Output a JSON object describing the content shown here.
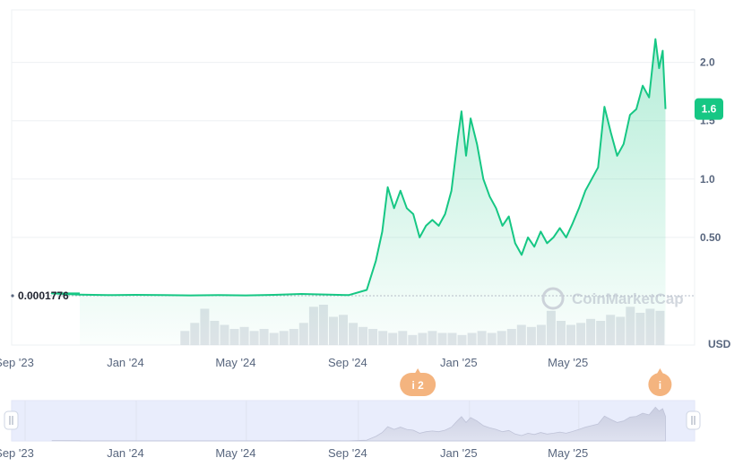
{
  "chart_data": {
    "type": "area",
    "ylim": [
      0,
      2.45
    ],
    "baseline": {
      "value": 0.0001776,
      "label": "0.0001776"
    },
    "yticks": [
      {
        "value": 0.5,
        "label": "0.50"
      },
      {
        "value": 1.0,
        "label": "1.0"
      },
      {
        "value": 1.5,
        "label": "1.5"
      },
      {
        "value": 2.0,
        "label": "2.0"
      }
    ],
    "current_price": {
      "value": 1.6,
      "label": "1.6"
    },
    "currency_label": "USD",
    "x_domain": [
      "2023-09-01",
      "2025-09-20"
    ],
    "xticks": [
      {
        "date": "2023-09-01",
        "label": "Sep '23"
      },
      {
        "date": "2024-01-01",
        "label": "Jan '24"
      },
      {
        "date": "2024-05-01",
        "label": "May '24"
      },
      {
        "date": "2024-09-01",
        "label": "Sep '24"
      },
      {
        "date": "2025-01-01",
        "label": "Jan '25"
      },
      {
        "date": "2025-05-01",
        "label": "May '25"
      }
    ],
    "points": [
      [
        "2023-10-15",
        0.02
      ],
      [
        "2023-11-15",
        0.01
      ],
      [
        "2023-12-15",
        0.005
      ],
      [
        "2024-01-15",
        0.008
      ],
      [
        "2024-02-15",
        0.005
      ],
      [
        "2024-03-15",
        0.003
      ],
      [
        "2024-04-15",
        0.005
      ],
      [
        "2024-05-15",
        0.003
      ],
      [
        "2024-06-15",
        0.008
      ],
      [
        "2024-07-15",
        0.015
      ],
      [
        "2024-08-15",
        0.01
      ],
      [
        "2024-09-05",
        0.005
      ],
      [
        "2024-09-25",
        0.05
      ],
      [
        "2024-10-05",
        0.3
      ],
      [
        "2024-10-12",
        0.55
      ],
      [
        "2024-10-18",
        0.93
      ],
      [
        "2024-10-25",
        0.75
      ],
      [
        "2024-11-01",
        0.9
      ],
      [
        "2024-11-08",
        0.75
      ],
      [
        "2024-11-15",
        0.7
      ],
      [
        "2024-11-22",
        0.5
      ],
      [
        "2024-11-29",
        0.6
      ],
      [
        "2024-12-06",
        0.65
      ],
      [
        "2024-12-13",
        0.6
      ],
      [
        "2024-12-20",
        0.7
      ],
      [
        "2024-12-27",
        0.9
      ],
      [
        "2025-01-03",
        1.35
      ],
      [
        "2025-01-07",
        1.58
      ],
      [
        "2025-01-12",
        1.2
      ],
      [
        "2025-01-17",
        1.52
      ],
      [
        "2025-01-24",
        1.3
      ],
      [
        "2025-01-31",
        1.0
      ],
      [
        "2025-02-07",
        0.85
      ],
      [
        "2025-02-14",
        0.75
      ],
      [
        "2025-02-21",
        0.6
      ],
      [
        "2025-02-28",
        0.68
      ],
      [
        "2025-03-07",
        0.45
      ],
      [
        "2025-03-14",
        0.35
      ],
      [
        "2025-03-21",
        0.5
      ],
      [
        "2025-03-28",
        0.42
      ],
      [
        "2025-04-04",
        0.55
      ],
      [
        "2025-04-11",
        0.45
      ],
      [
        "2025-04-18",
        0.5
      ],
      [
        "2025-04-25",
        0.58
      ],
      [
        "2025-05-02",
        0.5
      ],
      [
        "2025-05-09",
        0.62
      ],
      [
        "2025-05-16",
        0.75
      ],
      [
        "2025-05-23",
        0.9
      ],
      [
        "2025-05-30",
        1.0
      ],
      [
        "2025-06-06",
        1.1
      ],
      [
        "2025-06-13",
        1.62
      ],
      [
        "2025-06-20",
        1.4
      ],
      [
        "2025-06-27",
        1.2
      ],
      [
        "2025-07-04",
        1.3
      ],
      [
        "2025-07-11",
        1.55
      ],
      [
        "2025-07-18",
        1.6
      ],
      [
        "2025-07-25",
        1.8
      ],
      [
        "2025-08-01",
        1.7
      ],
      [
        "2025-08-08",
        2.2
      ],
      [
        "2025-08-12",
        1.95
      ],
      [
        "2025-08-16",
        2.1
      ],
      [
        "2025-08-19",
        1.6
      ]
    ],
    "volume": [
      0.001,
      0.001,
      0.001,
      0.001,
      0.001,
      0.001,
      0.001,
      0.001,
      0.001,
      0.001,
      0.001,
      0.001,
      0.002,
      0.35,
      0.55,
      0.9,
      0.6,
      0.5,
      0.4,
      0.45,
      0.35,
      0.4,
      0.3,
      0.35,
      0.4,
      0.55,
      0.95,
      1.0,
      0.7,
      0.75,
      0.55,
      0.45,
      0.4,
      0.35,
      0.3,
      0.35,
      0.25,
      0.3,
      0.35,
      0.3,
      0.3,
      0.25,
      0.3,
      0.35,
      0.3,
      0.35,
      0.4,
      0.5,
      0.45,
      0.5,
      0.85,
      0.6,
      0.5,
      0.55,
      0.65,
      0.6,
      0.75,
      0.7,
      0.95,
      0.8,
      0.9,
      0.85
    ],
    "events": [
      {
        "date": "2024-11-20",
        "label": "i 2"
      },
      {
        "date": "2025-08-13",
        "label": "i"
      }
    ],
    "watermark": "CoinMarketCap"
  }
}
